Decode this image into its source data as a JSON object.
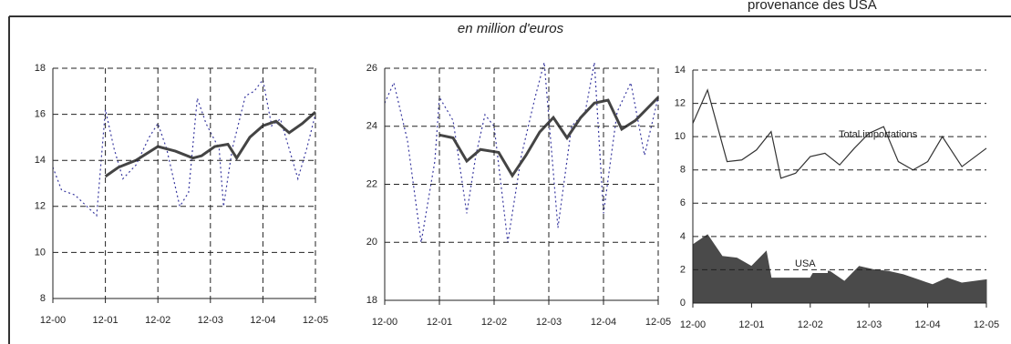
{
  "header": {
    "title": "provenance des USA",
    "subtitle": "en million d'euros"
  },
  "chart_data": [
    {
      "type": "line",
      "ylim": [
        8,
        18
      ],
      "yticks": [
        8,
        10,
        12,
        14,
        16,
        18
      ],
      "xlim": [
        0,
        60
      ],
      "xticks": [
        {
          "value": 0,
          "label": "12-00"
        },
        {
          "value": 12,
          "label": "12-01"
        },
        {
          "value": 24,
          "label": "12-02"
        },
        {
          "value": 36,
          "label": "12-03"
        },
        {
          "value": 48,
          "label": "12-04"
        },
        {
          "value": 60,
          "label": "12-05"
        }
      ],
      "grid": "both",
      "series": [
        {
          "style": "dotted",
          "color": "#3a3aa0",
          "x": [
            0,
            2,
            5,
            10,
            12,
            14,
            16,
            19,
            22,
            24,
            26,
            29,
            31,
            33,
            35,
            38,
            39,
            41,
            44,
            46,
            48,
            50,
            52,
            56,
            58,
            60
          ],
          "values": [
            13.7,
            12.7,
            12.5,
            11.6,
            16.2,
            14.5,
            13.2,
            13.8,
            15.0,
            15.6,
            14.5,
            12.0,
            12.6,
            16.7,
            15.6,
            14.5,
            12.0,
            14.5,
            16.8,
            17.0,
            17.5,
            15.5,
            15.8,
            13.2,
            14.5,
            16.0
          ]
        },
        {
          "style": "solid",
          "color": "#444444",
          "x": [
            12,
            15,
            19,
            24,
            28,
            32,
            34,
            37,
            40,
            42,
            45,
            48,
            51,
            54,
            57,
            60
          ],
          "values": [
            13.3,
            13.7,
            14.0,
            14.6,
            14.4,
            14.1,
            14.2,
            14.6,
            14.7,
            14.1,
            15.0,
            15.5,
            15.7,
            15.2,
            15.6,
            16.1
          ]
        }
      ]
    },
    {
      "type": "line",
      "ylim": [
        18,
        26
      ],
      "yticks": [
        18,
        20,
        22,
        24,
        26
      ],
      "xlim": [
        0,
        60
      ],
      "xticks": [
        {
          "value": 0,
          "label": "12-00"
        },
        {
          "value": 12,
          "label": "12-01"
        },
        {
          "value": 24,
          "label": "12-02"
        },
        {
          "value": 36,
          "label": "12-03"
        },
        {
          "value": 48,
          "label": "12-04"
        },
        {
          "value": 60,
          "label": "12-05"
        }
      ],
      "grid": "both",
      "series": [
        {
          "style": "dotted",
          "color": "#3a3aa0",
          "x": [
            0,
            2,
            5,
            8,
            11,
            12,
            15,
            18,
            20,
            22,
            24,
            27,
            30,
            33,
            35,
            38,
            41,
            44,
            46,
            48,
            51,
            54,
            57,
            60
          ],
          "values": [
            24.8,
            25.5,
            23.5,
            20.0,
            22.8,
            25.0,
            24.2,
            21.0,
            23.0,
            24.4,
            24.0,
            20.0,
            23.0,
            25.0,
            26.2,
            20.5,
            24.0,
            24.5,
            26.2,
            21.0,
            24.5,
            25.5,
            23.0,
            25.0
          ]
        },
        {
          "style": "solid",
          "color": "#444444",
          "x": [
            12,
            15,
            18,
            21,
            25,
            28,
            31,
            34,
            37,
            40,
            43,
            46,
            49,
            52,
            55,
            60
          ],
          "values": [
            23.7,
            23.6,
            22.8,
            23.2,
            23.1,
            22.3,
            23.0,
            23.8,
            24.3,
            23.6,
            24.3,
            24.8,
            24.9,
            23.9,
            24.2,
            25.0
          ]
        }
      ]
    },
    {
      "type": "area",
      "ylim": [
        0,
        14
      ],
      "yticks": [
        0,
        2,
        4,
        6,
        8,
        10,
        12,
        14
      ],
      "xlim": [
        0,
        60
      ],
      "xticks": [
        {
          "value": 0,
          "label": "12-00"
        },
        {
          "value": 12,
          "label": "12-01"
        },
        {
          "value": 24,
          "label": "12-02"
        },
        {
          "value": 36,
          "label": "12-03"
        },
        {
          "value": 48,
          "label": "12-04"
        },
        {
          "value": 60,
          "label": "12-05"
        }
      ],
      "grid": "y",
      "series": [
        {
          "name": "Total importations",
          "style": "line",
          "color": "#333333",
          "x": [
            0,
            3,
            7,
            10,
            13,
            16,
            18,
            21,
            24,
            27,
            30,
            33,
            36,
            39,
            42,
            45,
            48,
            51,
            55,
            60
          ],
          "values": [
            10.8,
            12.8,
            8.5,
            8.6,
            9.2,
            10.3,
            7.5,
            7.8,
            8.8,
            9.0,
            8.3,
            9.3,
            10.2,
            10.6,
            8.5,
            8.0,
            8.5,
            10.0,
            8.2,
            9.3
          ]
        },
        {
          "name": "USA",
          "style": "area",
          "color": "#4a4a4a",
          "x": [
            0,
            3,
            6,
            9,
            12,
            15,
            16,
            24,
            25,
            28,
            31,
            34,
            37,
            40,
            43,
            46,
            49,
            52,
            55,
            60
          ],
          "values": [
            3.5,
            4.1,
            2.8,
            2.7,
            2.2,
            3.1,
            1.5,
            1.5,
            2.0,
            1.9,
            1.3,
            2.2,
            2.0,
            1.9,
            1.7,
            1.4,
            1.1,
            1.5,
            1.2,
            1.4
          ]
        }
      ]
    }
  ]
}
